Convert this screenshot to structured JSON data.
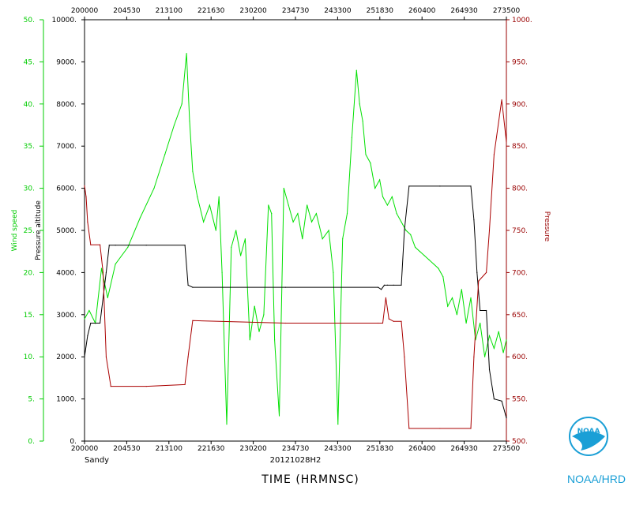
{
  "chart_data": {
    "type": "line",
    "storm": "Sandy",
    "date_label": "20121028H2",
    "xlabel": "TIME (HRMNSC)",
    "x_ticks": [
      "200000",
      "204530",
      "213100",
      "221630",
      "230200",
      "234730",
      "243300",
      "251830",
      "260400",
      "264930",
      "273500"
    ],
    "xlim_seconds": [
      72000,
      99300
    ],
    "axes": {
      "wind": {
        "label": "Wind speed",
        "ticks": [
          "0.",
          "5.",
          "10.",
          "15.",
          "20.",
          "25.",
          "30.",
          "35.",
          "40.",
          "45.",
          "50."
        ],
        "ylim": [
          0,
          50
        ]
      },
      "altitude": {
        "label": "Pressure altitude",
        "ticks": [
          "0.",
          "1000.",
          "2000.",
          "3000.",
          "4000.",
          "5000.",
          "6000.",
          "7000.",
          "8000.",
          "9000.",
          "10000."
        ],
        "ylim": [
          0,
          10000
        ]
      },
      "pressure": {
        "label": "Pressure",
        "ticks": [
          "500.",
          "550.",
          "600.",
          "650.",
          "700.",
          "750.",
          "800.",
          "850.",
          "900.",
          "950.",
          "1000."
        ],
        "ylim": [
          500,
          1000
        ]
      }
    },
    "series": [
      {
        "name": "Wind speed",
        "axis": "wind",
        "x": [
          72000,
          72300,
          72700,
          73100,
          73500,
          74000,
          74800,
          75600,
          76500,
          77200,
          77800,
          78300,
          78600,
          78800,
          79000,
          79300,
          79700,
          80100,
          80500,
          80700,
          80900,
          81200,
          81500,
          81800,
          82100,
          82400,
          82700,
          83000,
          83300,
          83600,
          83900,
          84100,
          84300,
          84600,
          84900,
          85200,
          85500,
          85800,
          86100,
          86400,
          86700,
          87000,
          87400,
          87800,
          88100,
          88400,
          88700,
          89000,
          89300,
          89600,
          89800,
          90000,
          90200,
          90500,
          90800,
          91100,
          91300,
          91600,
          91900,
          92200,
          92500,
          92800,
          93100,
          93400,
          93700,
          94000,
          94300,
          94600,
          94900,
          95200,
          95500,
          95800,
          96100,
          96400,
          96700,
          97000,
          97300,
          97600,
          97900,
          98200,
          98500,
          98800,
          99100,
          99300
        ],
        "y": [
          14.5,
          15.5,
          14.0,
          20.5,
          17.0,
          21.0,
          23.0,
          26.5,
          30.0,
          34.0,
          37.5,
          40.0,
          46.0,
          38.0,
          32.0,
          29.0,
          26.0,
          28.0,
          25.0,
          29.0,
          20.0,
          2.0,
          23.0,
          25.0,
          22.0,
          24.0,
          12.0,
          16.0,
          13.0,
          15.0,
          28.0,
          27.0,
          12.0,
          3.0,
          30.0,
          28.0,
          26.0,
          27.0,
          24.0,
          28.0,
          26.0,
          27.0,
          24.0,
          25.0,
          20.0,
          2.0,
          24.0,
          27.0,
          36.0,
          44.0,
          40.0,
          38.0,
          34.0,
          33.0,
          30.0,
          31.0,
          29.0,
          28.0,
          29.0,
          27.0,
          26.0,
          25.0,
          24.5,
          23.0,
          22.5,
          22.0,
          21.5,
          21.0,
          20.5,
          19.5,
          16.0,
          17.0,
          15.0,
          18.0,
          14.0,
          17.0,
          12.0,
          14.0,
          10.0,
          12.5,
          11.0,
          13.0,
          10.5,
          12.0
        ]
      },
      {
        "name": "Pressure altitude",
        "axis": "altitude",
        "x": [
          72000,
          72200,
          72400,
          73000,
          73400,
          73600,
          74000,
          76000,
          78500,
          78700,
          79000,
          85000,
          91000,
          91200,
          91400,
          91600,
          92000,
          92500,
          92700,
          93000,
          95000,
          97000,
          97200,
          97400,
          97600,
          98000,
          98200,
          98500,
          99000,
          99300
        ],
        "y": [
          2000,
          2500,
          2800,
          2800,
          4000,
          4650,
          4650,
          4650,
          4650,
          3700,
          3650,
          3650,
          3650,
          3600,
          3700,
          3700,
          3700,
          3700,
          5000,
          6050,
          6050,
          6050,
          5250,
          4000,
          3100,
          3100,
          1700,
          1000,
          950,
          550
        ]
      },
      {
        "name": "Pressure",
        "axis": "pressure",
        "x": [
          72000,
          72100,
          72200,
          72400,
          73000,
          73200,
          73400,
          73700,
          76000,
          78500,
          78700,
          79000,
          85000,
          91000,
          91300,
          91500,
          91700,
          92000,
          92500,
          92700,
          93000,
          95000,
          97000,
          97200,
          97500,
          98000,
          98200,
          98500,
          99000,
          99300
        ],
        "y": [
          803,
          790,
          760,
          733,
          733,
          700,
          600,
          565,
          565,
          567,
          600,
          643,
          640,
          640,
          640,
          670,
          645,
          642,
          642,
          600,
          515,
          515,
          515,
          600,
          690,
          700,
          750,
          840,
          905,
          855
        ]
      }
    ]
  },
  "footer": {
    "org": "NOAA/HRD",
    "logo_text": "NOAA"
  }
}
